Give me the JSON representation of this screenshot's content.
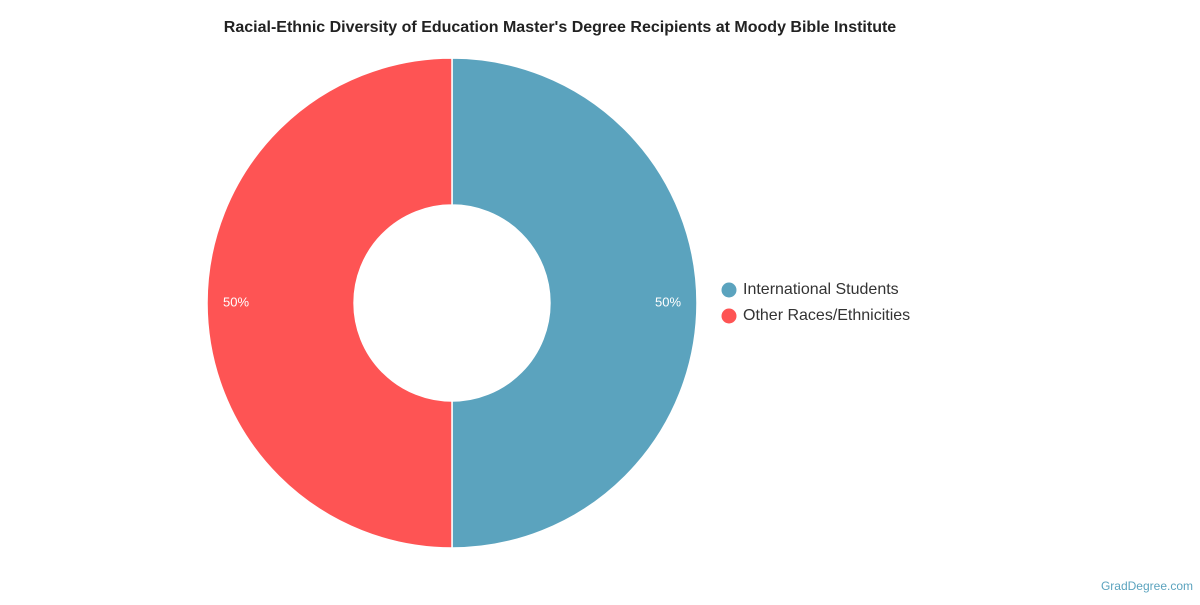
{
  "chart_data": {
    "type": "donut",
    "title": "Racial-Ethnic Diversity of Education Master's Degree Recipients at Moody Bible Institute",
    "categories": [
      "International Students",
      "Other Races/Ethnicities"
    ],
    "values": [
      50,
      50
    ],
    "value_labels": [
      "50%",
      "50%"
    ],
    "colors": [
      "#5ba3be",
      "#fe5454"
    ],
    "legend": "right",
    "source": "GradDegree.com"
  }
}
